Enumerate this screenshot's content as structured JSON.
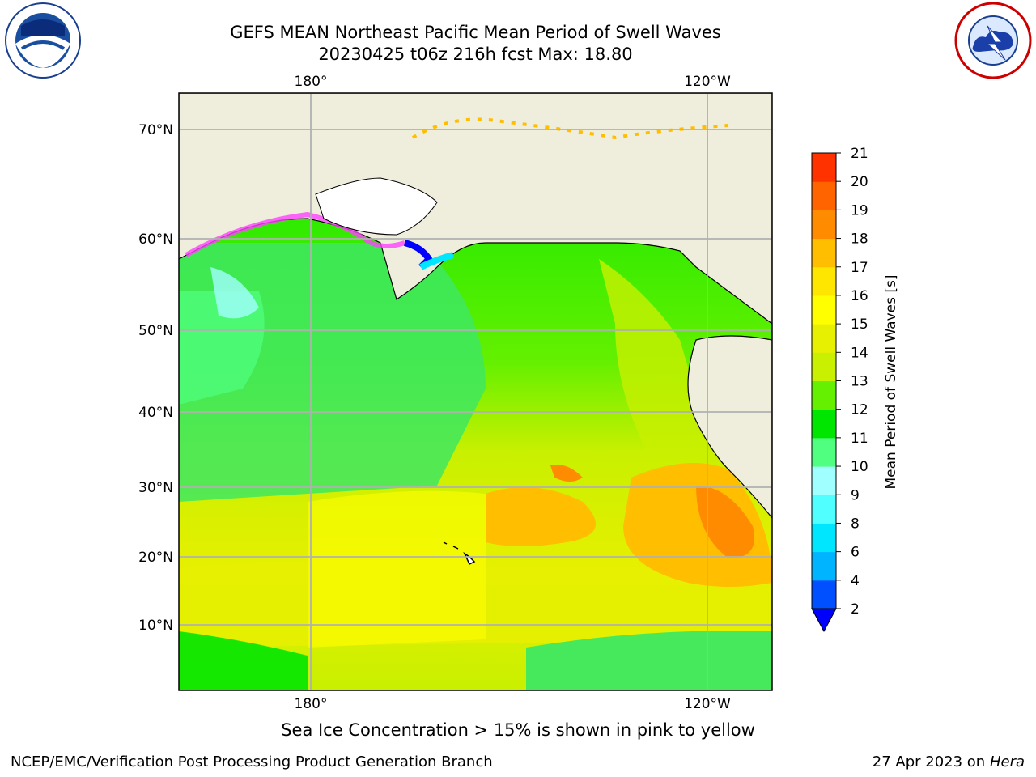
{
  "header": {
    "title_line1": "GEFS MEAN Northeast Pacific Mean Period of Swell Waves",
    "title_line2": "20230425 t06z 216h fcst   Max: 18.80"
  },
  "logos": {
    "left": "NOAA",
    "right": "NATIONAL WEATHER SERVICE"
  },
  "map": {
    "lon_labels_top": [
      "180°",
      "120°W"
    ],
    "lon_labels_bottom": [
      "180°",
      "120°W"
    ],
    "lat_labels": [
      "70°N",
      "60°N",
      "50°N",
      "40°N",
      "30°N",
      "20°N",
      "10°N"
    ],
    "colors": {
      "land": "#efeddb",
      "coast": "#000000",
      "grid": "#b0b0b0"
    }
  },
  "colorbar": {
    "label": "Mean Period of Swell Waves [s]",
    "ticks": [
      "2",
      "4",
      "6",
      "8",
      "9",
      "10",
      "11",
      "12",
      "13",
      "14",
      "15",
      "16",
      "17",
      "18",
      "19",
      "20",
      "21"
    ],
    "colors": [
      "#0050ff",
      "#00b4ff",
      "#00e6ff",
      "#50ffff",
      "#a0ffff",
      "#50ff80",
      "#00e600",
      "#64f000",
      "#c8f000",
      "#e6f000",
      "#ffff00",
      "#ffe600",
      "#ffbe00",
      "#ff8c00",
      "#ff6400",
      "#ff3200",
      "#ff0000"
    ],
    "under_color": "#0000ff"
  },
  "caption": "Sea Ice Concentration > 15% is shown in pink to yellow",
  "footer": {
    "left": "NCEP/EMC/Verification Post Processing Product Generation Branch",
    "right_prefix": "27 Apr 2023 on ",
    "right_host": "Hera"
  }
}
